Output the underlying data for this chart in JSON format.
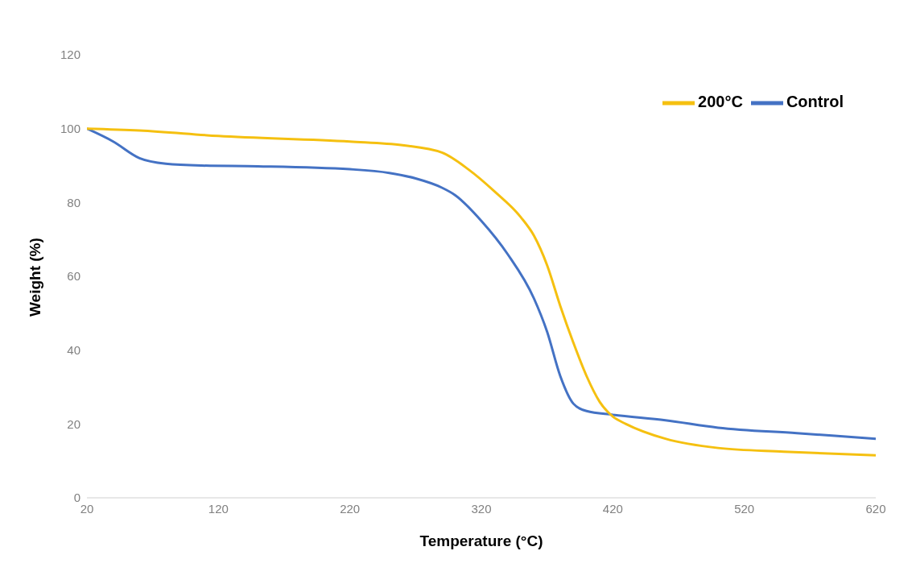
{
  "chart_data": {
    "type": "line",
    "xlabel": "Temperature (°C)",
    "ylabel": "Weight (%)",
    "xlim": [
      20,
      620
    ],
    "xticks": [
      20,
      120,
      220,
      320,
      420,
      520,
      620
    ],
    "ylim": [
      0,
      120
    ],
    "yticks": [
      0,
      20,
      40,
      60,
      80,
      100,
      120
    ],
    "grid": false,
    "legend": "top right",
    "marker": "none",
    "line_style": "solid",
    "series": [
      {
        "name": "Control",
        "color": "#4472c4",
        "x": [
          20,
          40,
          60,
          80,
          107,
          150,
          220,
          250,
          270,
          290,
          300,
          320,
          340,
          360,
          370,
          380,
          390,
          400,
          420,
          460,
          500,
          560,
          620
        ],
        "values": [
          100,
          96.5,
          92,
          90.5,
          90,
          89.8,
          89,
          88,
          86.5,
          84,
          82,
          75,
          66,
          54,
          45,
          33,
          25.5,
          23.5,
          22.5,
          21,
          19,
          17.5,
          16
        ]
      },
      {
        "name": "200°C",
        "color": "#f5c010",
        "x": [
          20,
          60,
          120,
          220,
          260,
          290,
          310,
          330,
          350,
          360,
          370,
          380,
          390,
          400,
          410,
          420,
          430,
          460,
          500,
          550,
          620
        ],
        "values": [
          100,
          99.5,
          98,
          96.5,
          95.5,
          93.5,
          89,
          83,
          76,
          71,
          63,
          52,
          42,
          33,
          26,
          22,
          20,
          16,
          13.5,
          12.5,
          11.5
        ]
      }
    ]
  }
}
